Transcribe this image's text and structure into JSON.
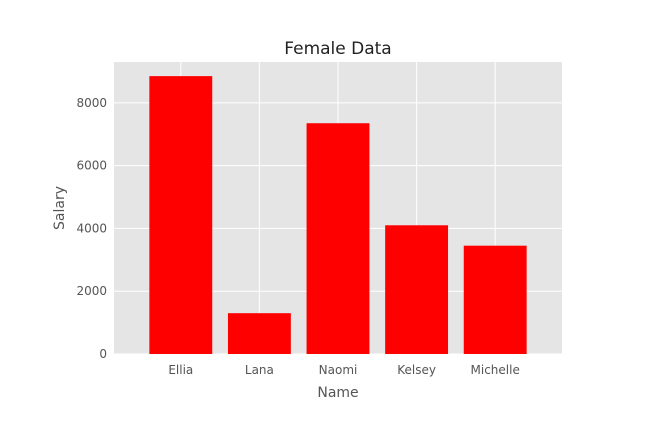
{
  "chart_data": {
    "type": "bar",
    "title": "Female Data",
    "xlabel": "Name",
    "ylabel": "Salary",
    "categories": [
      "Ellia",
      "Lana",
      "Naomi",
      "Kelsey",
      "Michelle"
    ],
    "values": [
      8850,
      1300,
      7350,
      4100,
      3450
    ],
    "ylim": [
      0,
      9300
    ],
    "yticks": [
      0,
      2000,
      4000,
      6000,
      8000
    ],
    "ytick_labels": [
      "0",
      "2000",
      "4000",
      "6000",
      "8000"
    ],
    "grid": true,
    "legend": "none",
    "bar_color": "#ff0000",
    "background_color": "#e5e5e5",
    "grid_color": "#ffffff"
  }
}
